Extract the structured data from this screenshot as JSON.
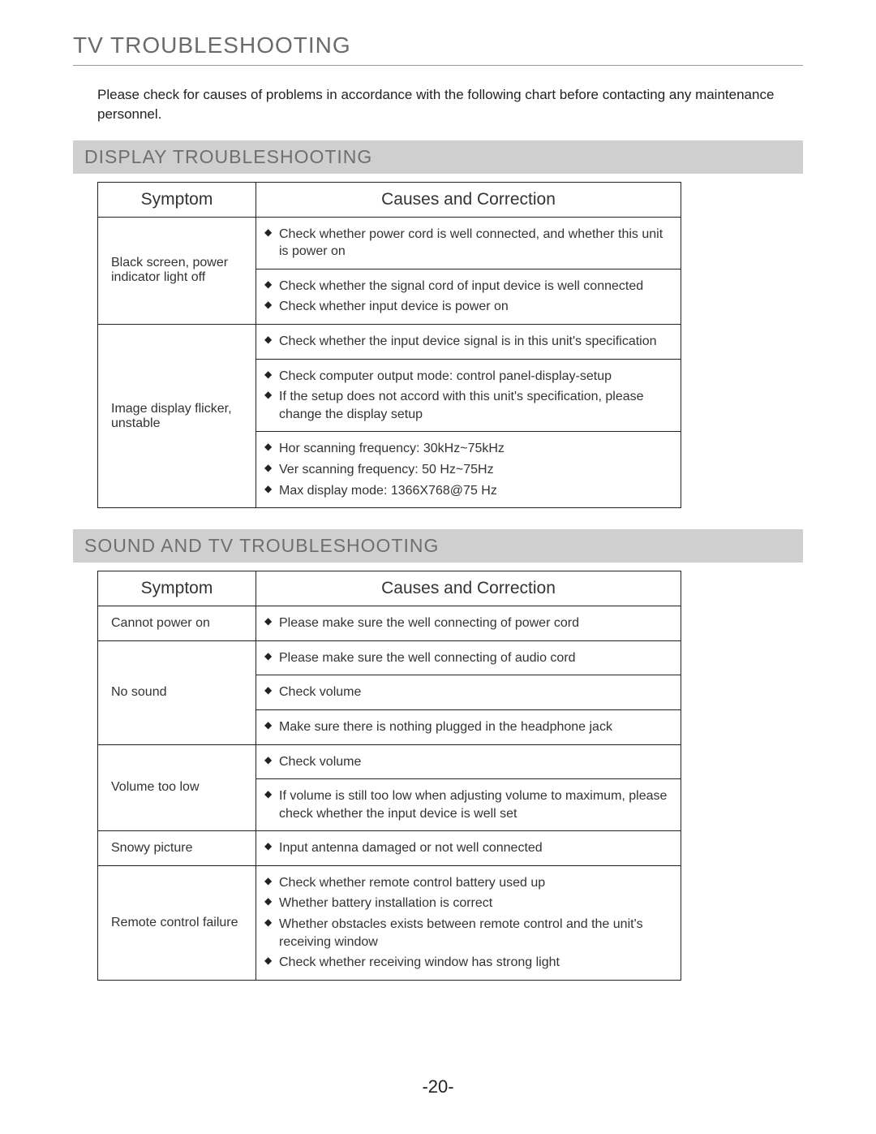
{
  "pageTitle": "TV TROUBLESHOOTING",
  "intro": "Please check for causes of problems in accordance with the following chart before contacting any maintenance personnel.",
  "pageNumber": "-20-",
  "sections": [
    {
      "title": "DISPLAY TROUBLESHOOTING",
      "columns": [
        "Symptom",
        "Causes and Correction"
      ],
      "rows": [
        {
          "symptom": "Black screen, power indicator light off",
          "groups": [
            [
              "Check whether power cord is well connected, and whether this unit is power on"
            ],
            [
              "Check whether the signal cord of input device is well connected",
              "Check whether input device is power on"
            ]
          ]
        },
        {
          "symptom": "Image display flicker, unstable",
          "groups": [
            [
              "Check whether the input device signal is in this unit's specification"
            ],
            [
              "Check computer output mode: control panel-display-setup",
              "If the setup does not accord with this unit's specification, please change the display setup"
            ],
            [
              "Hor scanning frequency: 30kHz~75kHz",
              "Ver scanning frequency: 50 Hz~75Hz",
              "Max display mode: 1366X768@75 Hz"
            ]
          ]
        }
      ]
    },
    {
      "title": "SOUND AND TV TROUBLESHOOTING",
      "columns": [
        "Symptom",
        "Causes and Correction"
      ],
      "rows": [
        {
          "symptom": "Cannot power on",
          "groups": [
            [
              "Please make sure the well connecting of power cord"
            ]
          ]
        },
        {
          "symptom": "No sound",
          "groups": [
            [
              "Please make sure the well connecting of audio cord"
            ],
            [
              "Check volume"
            ],
            [
              "Make sure there is nothing plugged in the headphone jack"
            ]
          ]
        },
        {
          "symptom": "Volume too low",
          "groups": [
            [
              "Check volume"
            ],
            [
              "If volume is still too low when adjusting volume to maximum, please check whether the input device is well set"
            ]
          ]
        },
        {
          "symptom": "Snowy picture",
          "groups": [
            [
              "Input antenna damaged or not well connected"
            ]
          ]
        },
        {
          "symptom": "Remote control failure",
          "groups": [
            [
              "Check whether remote control battery used up",
              "Whether battery installation is correct",
              "Whether obstacles exists between remote control and the unit's receiving window",
              "Check whether receiving window has strong light"
            ]
          ]
        }
      ]
    }
  ],
  "styling": {
    "page_bg": "#ffffff",
    "title_color": "#6b6b6b",
    "section_bg": "#cfcfcf",
    "section_text": "#6f6f6f",
    "border_color": "#222222",
    "text_color": "#222222",
    "bullet_glyph": "◆",
    "fonts": {
      "base": "Arial",
      "title_size": 28,
      "section_size": 23,
      "th_size": 21,
      "body_size": 16
    }
  }
}
